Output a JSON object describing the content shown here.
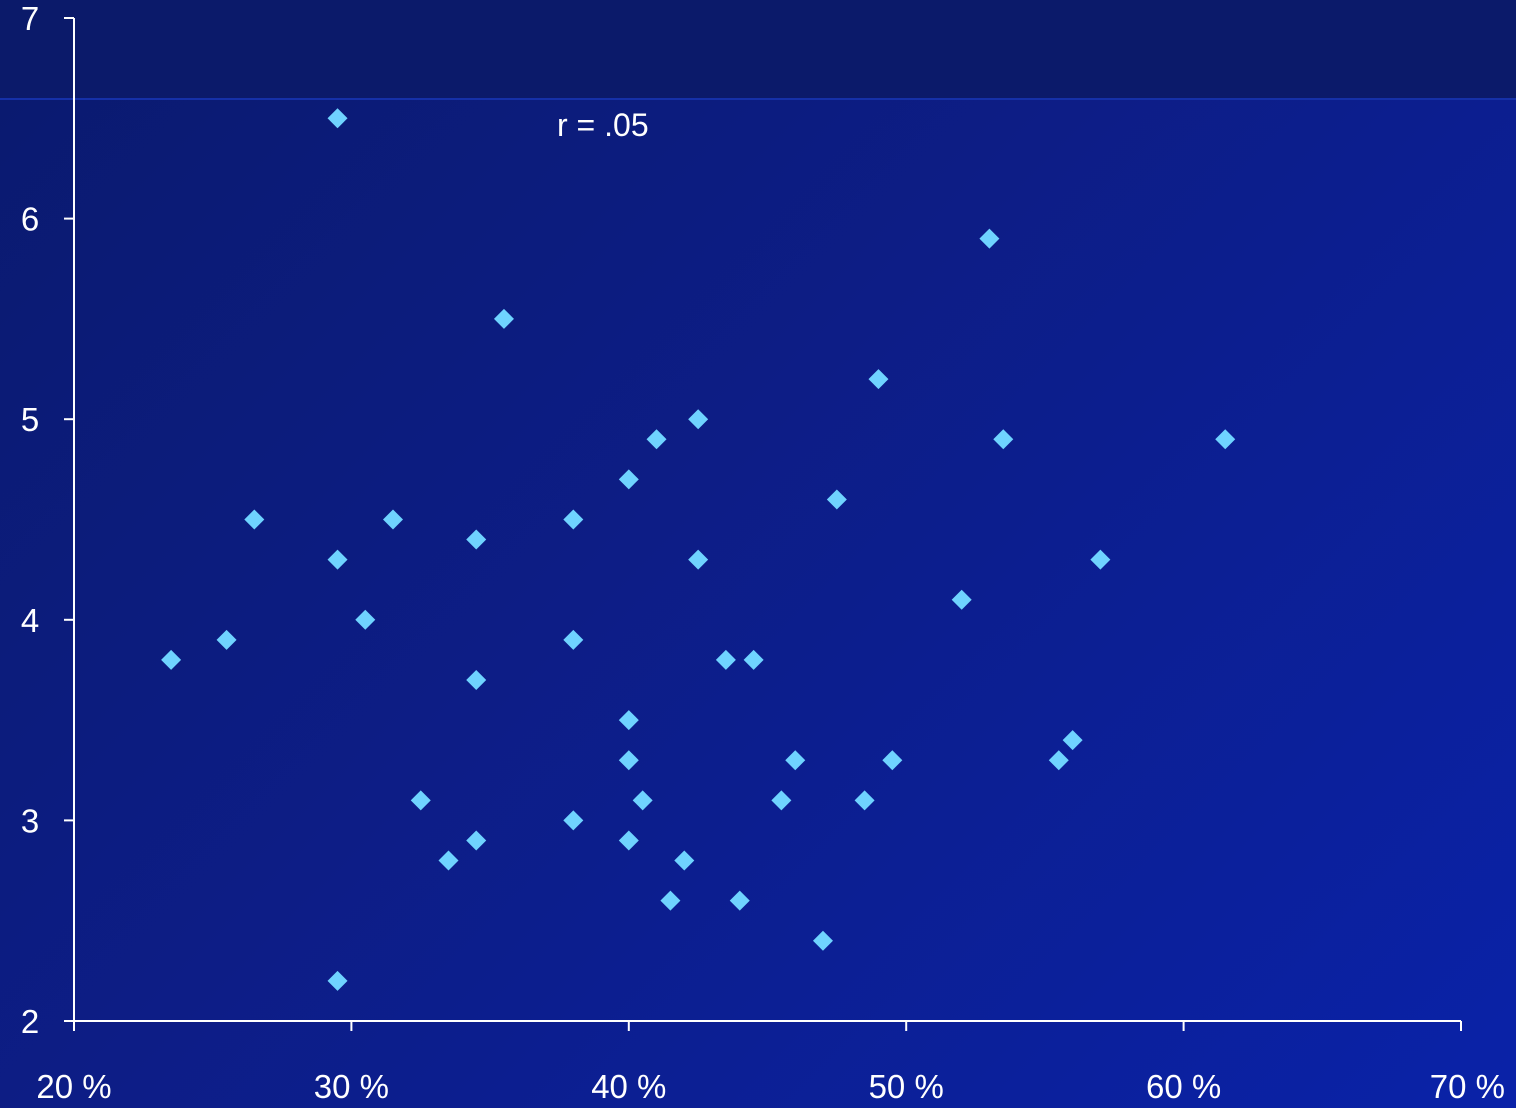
{
  "chart_data": {
    "type": "scatter",
    "title": "",
    "xlabel": "",
    "ylabel": "",
    "annotation": "r = .05",
    "xlim": [
      20,
      70
    ],
    "ylim": [
      2,
      7
    ],
    "x_ticks": [
      20,
      30,
      40,
      50,
      60,
      70
    ],
    "x_tick_labels": [
      "20 %",
      "30 %",
      "40 %",
      "50 %",
      "60 %",
      "70 %"
    ],
    "y_ticks": [
      2,
      3,
      4,
      5,
      6,
      7
    ],
    "y_tick_labels": [
      "2",
      "3",
      "4",
      "5",
      "6",
      "7"
    ],
    "grid": false,
    "marker_color": "#6fd3ff",
    "axis_color": "#ffffff",
    "series": [
      {
        "points": [
          [
            29.5,
            6.5
          ],
          [
            53.0,
            5.9
          ],
          [
            35.5,
            5.5
          ],
          [
            49.0,
            5.2
          ],
          [
            42.5,
            5.0
          ],
          [
            41.0,
            4.9
          ],
          [
            53.5,
            4.9
          ],
          [
            61.5,
            4.9
          ],
          [
            40.0,
            4.7
          ],
          [
            47.5,
            4.6
          ],
          [
            26.5,
            4.5
          ],
          [
            31.5,
            4.5
          ],
          [
            38.0,
            4.5
          ],
          [
            34.5,
            4.4
          ],
          [
            29.5,
            4.3
          ],
          [
            42.5,
            4.3
          ],
          [
            57.0,
            4.3
          ],
          [
            52.0,
            4.1
          ],
          [
            30.5,
            4.0
          ],
          [
            25.5,
            3.9
          ],
          [
            38.0,
            3.9
          ],
          [
            23.5,
            3.8
          ],
          [
            43.5,
            3.8
          ],
          [
            44.5,
            3.8
          ],
          [
            34.5,
            3.7
          ],
          [
            40.0,
            3.5
          ],
          [
            56.0,
            3.4
          ],
          [
            40.0,
            3.3
          ],
          [
            46.0,
            3.3
          ],
          [
            49.5,
            3.3
          ],
          [
            55.5,
            3.3
          ],
          [
            32.5,
            3.1
          ],
          [
            40.5,
            3.1
          ],
          [
            45.5,
            3.1
          ],
          [
            48.5,
            3.1
          ],
          [
            38.0,
            3.0
          ],
          [
            34.5,
            2.9
          ],
          [
            40.0,
            2.9
          ],
          [
            33.5,
            2.8
          ],
          [
            42.0,
            2.8
          ],
          [
            41.5,
            2.6
          ],
          [
            44.0,
            2.6
          ],
          [
            47.0,
            2.4
          ],
          [
            29.5,
            2.2
          ]
        ]
      }
    ]
  }
}
